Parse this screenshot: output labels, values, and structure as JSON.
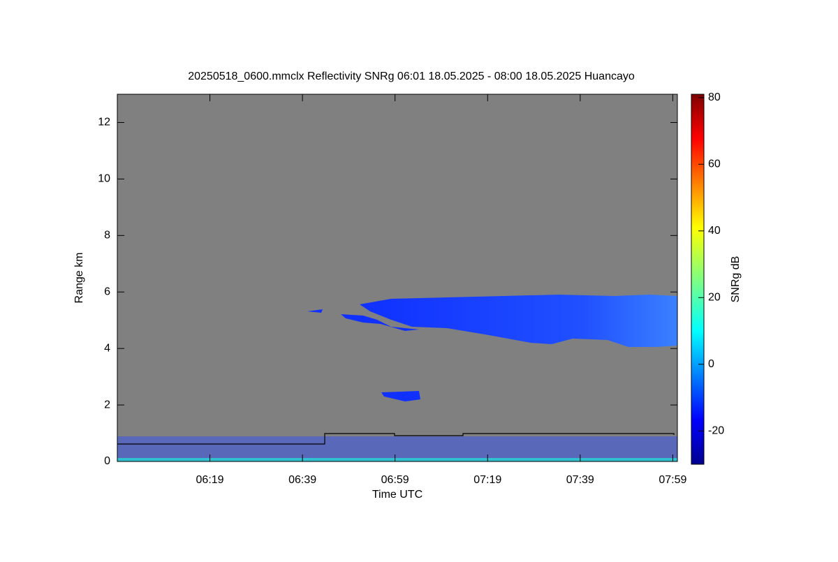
{
  "chart_data": {
    "type": "heatmap",
    "title": "20250518_0600.mmclx Reflectivity SNRg   06:01 18.05.2025 - 08:00 18.05.2025 Huancayo",
    "x_label": "Time UTC",
    "y_label": "Range km",
    "colorbar_label": "SNRg dB",
    "background_color": "#808080",
    "xlim": [
      359,
      480
    ],
    "xticks": [
      {
        "value": 379,
        "label": "06:19"
      },
      {
        "value": 399,
        "label": "06:39"
      },
      {
        "value": 419,
        "label": "06:59"
      },
      {
        "value": 439,
        "label": "07:19"
      },
      {
        "value": 459,
        "label": "07:39"
      },
      {
        "value": 479,
        "label": "07:59"
      }
    ],
    "ylim": [
      0,
      13
    ],
    "yticks": [
      0,
      2,
      4,
      6,
      8,
      10,
      12
    ],
    "clim": [
      -30,
      81
    ],
    "cticks": [
      -20,
      0,
      20,
      40,
      60,
      80
    ]
  }
}
